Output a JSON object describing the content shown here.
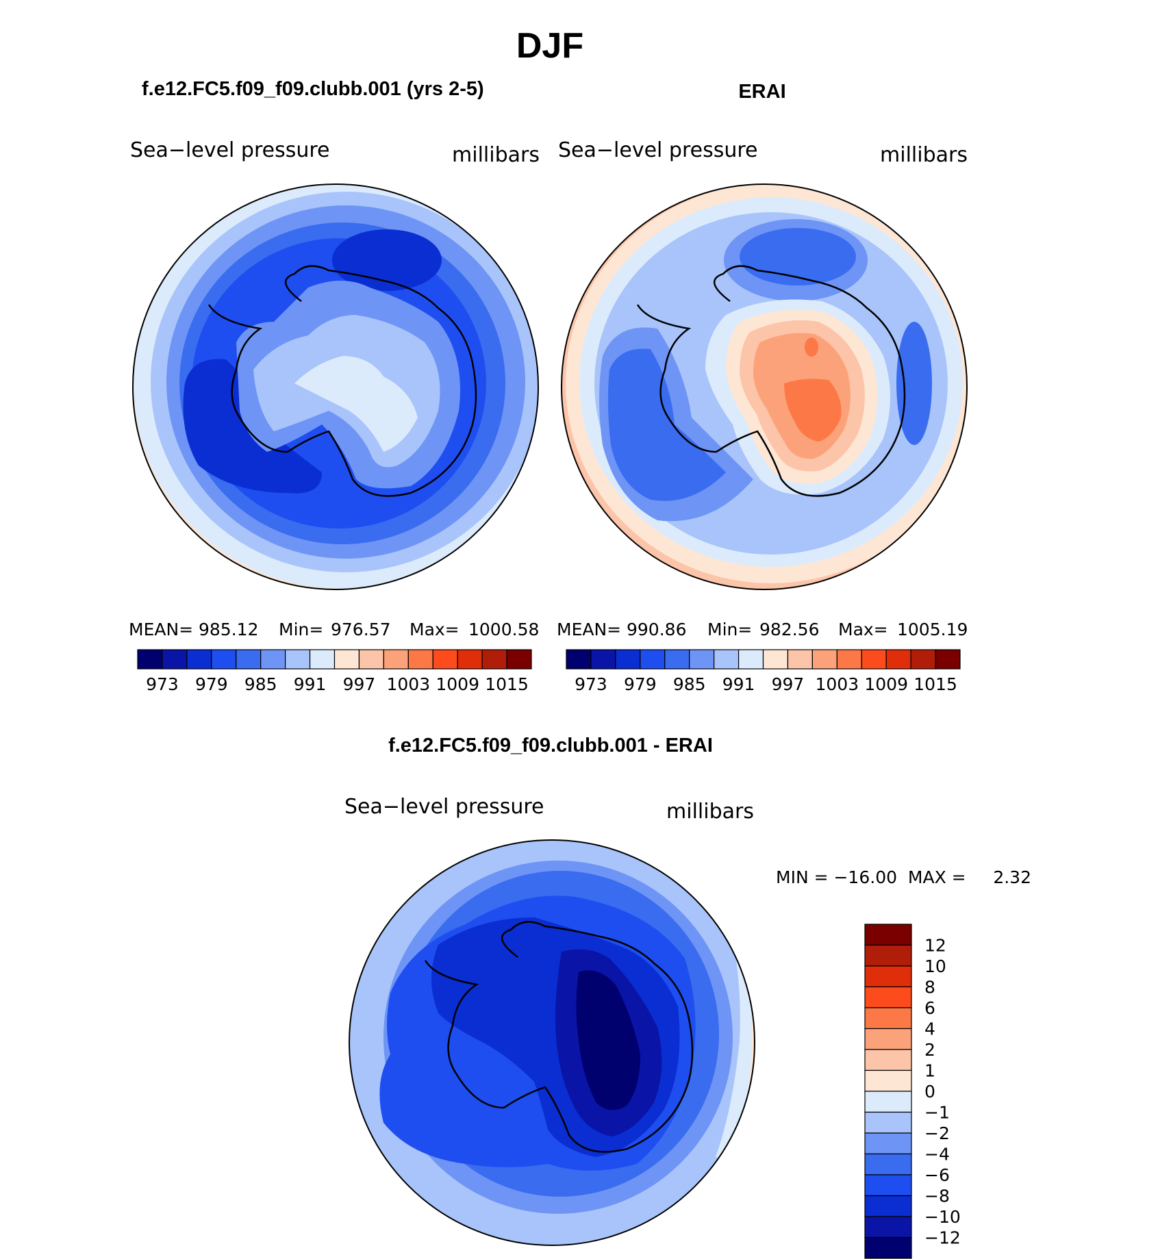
{
  "title": "DJF",
  "panels": [
    {
      "id": "model",
      "case_title": "f.e12.FC5.f09_f09.clubb.001 (yrs 2-5)",
      "variable": "Sea−level pressure",
      "units": "millibars",
      "stats": {
        "mean_label": "MEAN=",
        "mean": "985.12",
        "min_label": "Min=",
        "min": "976.57",
        "max_label": "Max=",
        "max": "1000.58"
      }
    },
    {
      "id": "obs",
      "case_title": "ERAI",
      "variable": "Sea−level pressure",
      "units": "millibars",
      "stats": {
        "mean_label": "MEAN=",
        "mean": "990.86",
        "min_label": "Min=",
        "min": "982.56",
        "max_label": "Max=",
        "max": "1005.19"
      }
    }
  ],
  "abs_colorbar": {
    "colors": [
      "#00006e",
      "#0a14a6",
      "#0a2ed2",
      "#1e4ef0",
      "#3a6cf0",
      "#6e94f5",
      "#a8c4fa",
      "#dcebfc",
      "#fde6d4",
      "#fcc4a8",
      "#fca27a",
      "#fc7846",
      "#fc4c1e",
      "#e02d0a",
      "#b01e0a",
      "#7a0000"
    ],
    "tick_labels": [
      "973",
      "979",
      "985",
      "991",
      "997",
      "1003",
      "1009",
      "1015"
    ]
  },
  "diff_panel": {
    "case_title": "f.e12.FC5.f09_f09.clubb.001 - ERAI",
    "variable": "Sea−level pressure",
    "units": "millibars",
    "minmax": "MIN = −16.00  MAX =     2.32",
    "colorbar": {
      "colors_top_to_bottom": [
        "#7a0000",
        "#b01e0a",
        "#e02d0a",
        "#fc4c1e",
        "#fc7846",
        "#fca27a",
        "#fcc4a8",
        "#fde6d4",
        "#dcebfc",
        "#a8c4fa",
        "#6e94f5",
        "#3a6cf0",
        "#1e4ef0",
        "#0a2ed2",
        "#0a14a6",
        "#00006e"
      ],
      "tick_labels": [
        "12",
        "10",
        "8",
        "6",
        "4",
        "2",
        "1",
        "0",
        "−1",
        "−2",
        "−4",
        "−6",
        "−8",
        "−10",
        "−12"
      ]
    }
  }
}
